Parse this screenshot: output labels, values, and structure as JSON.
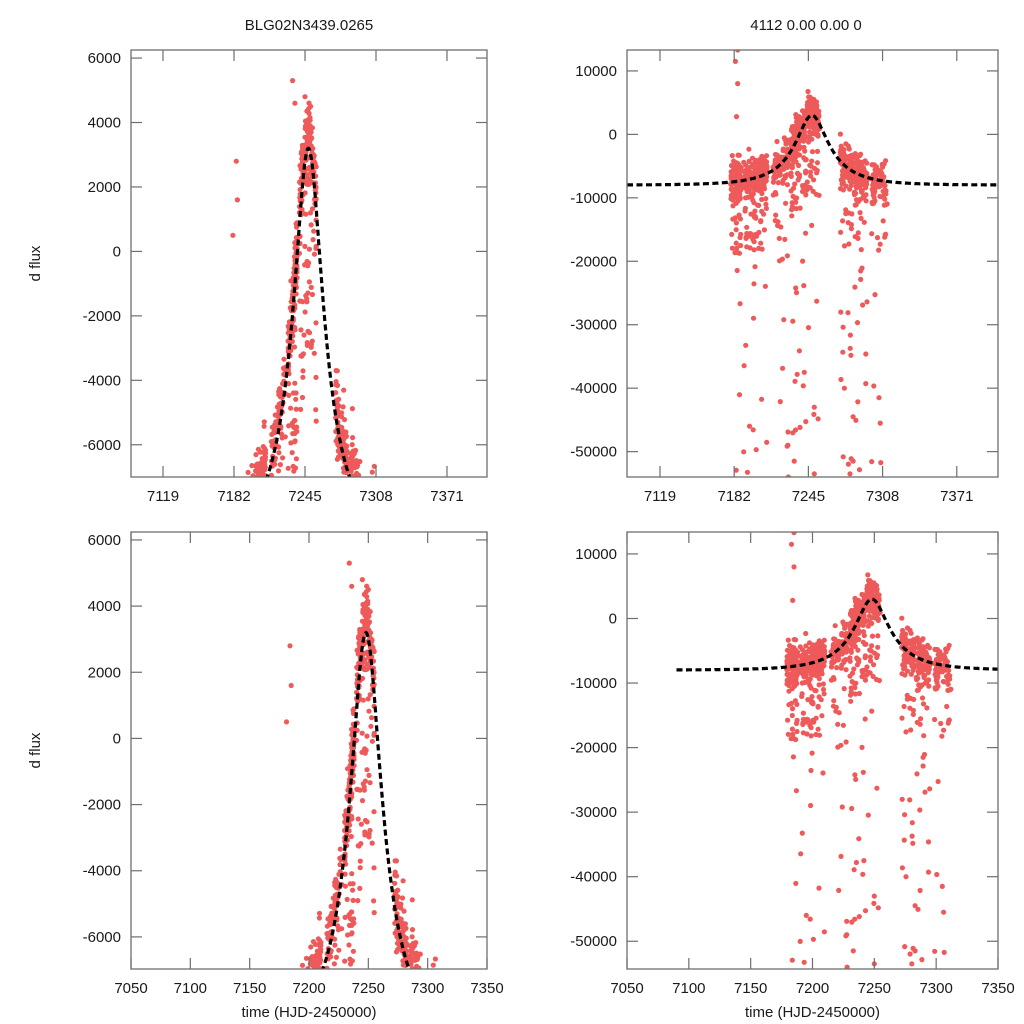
{
  "figure": {
    "title_left": "BLG02N3439.0265",
    "title_right": "4112  0.00  0.00  0",
    "point_color": "#ee5a5a",
    "model_color": "#000000"
  },
  "chart_data": [
    {
      "id": "top-left",
      "type": "scatter",
      "title": "BLG02N3439.0265",
      "xlabel": "",
      "ylabel": "d flux",
      "xlim": [
        7090.6,
        7406.5
      ],
      "ylim": [
        -7000,
        6250
      ],
      "xticks": [
        7119,
        7182,
        7245,
        7308,
        7371
      ],
      "xtick_labels": [
        "7119",
        "7182",
        "7245",
        "7308",
        "7371"
      ],
      "yticks": [
        6000,
        4000,
        2000,
        0,
        -2000,
        -4000,
        -6000
      ],
      "ytick_labels": [
        "6000",
        "4000",
        "2000",
        "0",
        "-2000",
        "-4000",
        "-6000"
      ],
      "grid": false,
      "model": {
        "t0": 7248,
        "peak": 3200,
        "base": -9000,
        "tE": 38,
        "style": "dashed"
      },
      "observations": {
        "seed": 11,
        "scatter_scale": 1.0,
        "clusters": [
          {
            "t": [
              7179,
              7188
            ],
            "n": 140
          },
          {
            "t": [
              7190,
              7200
            ],
            "n": 110
          },
          {
            "t": [
              7200,
              7210
            ],
            "n": 140
          },
          {
            "t": [
              7215,
              7228
            ],
            "n": 90
          },
          {
            "t": [
              7230,
              7238
            ],
            "n": 150
          },
          {
            "t": [
              7240,
              7255
            ],
            "n": 190
          },
          {
            "t": [
              7272,
              7282
            ],
            "n": 120
          },
          {
            "t": [
              7284,
              7295
            ],
            "n": 110
          },
          {
            "t": [
              7298,
              7312
            ],
            "n": 90
          }
        ],
        "outliers": [
          [
            7184,
            2800
          ],
          [
            7185,
            1600
          ],
          [
            7181,
            500
          ],
          [
            7234,
            5300
          ],
          [
            7236,
            4600
          ],
          [
            7245,
            4800
          ],
          [
            7250,
            4500
          ]
        ]
      }
    },
    {
      "id": "top-right",
      "type": "scatter",
      "title": "4112  0.00  0.00  0",
      "xlabel": "",
      "ylabel": "",
      "xlim": [
        7091,
        7406
      ],
      "ylim": [
        -54000,
        13300
      ],
      "xticks": [
        7119,
        7182,
        7245,
        7308,
        7371
      ],
      "xtick_labels": [
        "7119",
        "7182",
        "7245",
        "7308",
        "7371"
      ],
      "yticks": [
        10000,
        0,
        -10000,
        -20000,
        -30000,
        -40000,
        -50000
      ],
      "ytick_labels": [
        "10000",
        "0",
        "-10000",
        "-20000",
        "-30000",
        "-40000",
        "-50000"
      ],
      "grid": false,
      "model": {
        "t0": 7248,
        "peak": 3000,
        "base": -8000,
        "tE": 40,
        "style": "dashed"
      },
      "observations": {
        "seed": 23,
        "scatter_scale": 1.0,
        "clusters": [
          {
            "t": [
              7179,
              7188
            ],
            "n": 140
          },
          {
            "t": [
              7190,
              7200
            ],
            "n": 110
          },
          {
            "t": [
              7200,
              7210
            ],
            "n": 140
          },
          {
            "t": [
              7215,
              7228
            ],
            "n": 90
          },
          {
            "t": [
              7230,
              7238
            ],
            "n": 150
          },
          {
            "t": [
              7240,
              7255
            ],
            "n": 190
          },
          {
            "t": [
              7272,
              7282
            ],
            "n": 120
          },
          {
            "t": [
              7284,
              7295
            ],
            "n": 110
          },
          {
            "t": [
              7298,
              7312
            ],
            "n": 90
          }
        ],
        "outliers": [
          [
            7183,
            11500
          ],
          [
            7185,
            13300
          ],
          [
            7185,
            8000
          ],
          [
            7184,
            2800
          ],
          [
            7228,
            -54000
          ],
          [
            7233,
            -51500
          ],
          [
            7250,
            -53500
          ],
          [
            7250,
            -43000
          ],
          [
            7283,
            -51500
          ],
          [
            7283,
            -44500
          ],
          [
            7305,
            -41500
          ],
          [
            7306,
            -45500
          ],
          [
            7195,
            -46000
          ]
        ]
      }
    },
    {
      "id": "bottom-left",
      "type": "scatter",
      "title": "",
      "xlabel": "time (HJD-2450000)",
      "ylabel": "d flux",
      "xlim": [
        7050,
        7350
      ],
      "ylim": [
        -6970,
        6240
      ],
      "xticks": [
        7050,
        7100,
        7150,
        7200,
        7250,
        7300,
        7350
      ],
      "xtick_labels": [
        "7050",
        "7100",
        "7150",
        "7200",
        "7250",
        "7300",
        "7350"
      ],
      "yticks": [
        6000,
        4000,
        2000,
        0,
        -2000,
        -4000,
        -6000
      ],
      "ytick_labels": [
        "6000",
        "4000",
        "2000",
        "0",
        "-2000",
        "-4000",
        "-6000"
      ],
      "grid": false,
      "model": {
        "t0": 7248,
        "peak": 3200,
        "base": -9000,
        "tE": 38,
        "style": "dashed",
        "t_start": 7090
      },
      "observations": {
        "seed": 11,
        "scatter_scale": 1.0,
        "clusters": [
          {
            "t": [
              7179,
              7188
            ],
            "n": 140
          },
          {
            "t": [
              7190,
              7200
            ],
            "n": 110
          },
          {
            "t": [
              7200,
              7210
            ],
            "n": 140
          },
          {
            "t": [
              7215,
              7228
            ],
            "n": 90
          },
          {
            "t": [
              7230,
              7238
            ],
            "n": 150
          },
          {
            "t": [
              7240,
              7255
            ],
            "n": 190
          },
          {
            "t": [
              7272,
              7282
            ],
            "n": 120
          },
          {
            "t": [
              7284,
              7295
            ],
            "n": 110
          },
          {
            "t": [
              7298,
              7312
            ],
            "n": 90
          }
        ],
        "outliers": [
          [
            7184,
            2800
          ],
          [
            7185,
            1600
          ],
          [
            7181,
            500
          ],
          [
            7234,
            5300
          ],
          [
            7236,
            4600
          ],
          [
            7245,
            4800
          ],
          [
            7250,
            4500
          ]
        ]
      }
    },
    {
      "id": "bottom-right",
      "type": "scatter",
      "title": "",
      "xlabel": "time (HJD-2450000)",
      "ylabel": "",
      "xlim": [
        7050,
        7350
      ],
      "ylim": [
        -54300,
        13400
      ],
      "xticks": [
        7050,
        7100,
        7150,
        7200,
        7250,
        7300,
        7350
      ],
      "xtick_labels": [
        "7050",
        "7100",
        "7150",
        "7200",
        "7250",
        "7300",
        "7350"
      ],
      "yticks": [
        10000,
        0,
        -10000,
        -20000,
        -30000,
        -40000,
        -50000
      ],
      "ytick_labels": [
        "10000",
        "0",
        "-10000",
        "-20000",
        "-30000",
        "-40000",
        "-50000"
      ],
      "grid": false,
      "model": {
        "t0": 7248,
        "peak": 3000,
        "base": -8000,
        "tE": 40,
        "style": "dashed",
        "t_start": 7090
      },
      "observations": {
        "seed": 23,
        "scatter_scale": 1.0,
        "clusters": [
          {
            "t": [
              7179,
              7188
            ],
            "n": 140
          },
          {
            "t": [
              7190,
              7200
            ],
            "n": 110
          },
          {
            "t": [
              7200,
              7210
            ],
            "n": 140
          },
          {
            "t": [
              7215,
              7228
            ],
            "n": 90
          },
          {
            "t": [
              7230,
              7238
            ],
            "n": 150
          },
          {
            "t": [
              7240,
              7255
            ],
            "n": 190
          },
          {
            "t": [
              7272,
              7282
            ],
            "n": 120
          },
          {
            "t": [
              7284,
              7295
            ],
            "n": 110
          },
          {
            "t": [
              7298,
              7312
            ],
            "n": 90
          }
        ],
        "outliers": [
          [
            7183,
            11500
          ],
          [
            7185,
            13300
          ],
          [
            7185,
            8000
          ],
          [
            7184,
            2800
          ],
          [
            7228,
            -54000
          ],
          [
            7233,
            -51500
          ],
          [
            7250,
            -53500
          ],
          [
            7250,
            -43000
          ],
          [
            7283,
            -51500
          ],
          [
            7283,
            -44500
          ],
          [
            7305,
            -41500
          ],
          [
            7306,
            -45500
          ],
          [
            7195,
            -46000
          ]
        ]
      }
    }
  ]
}
